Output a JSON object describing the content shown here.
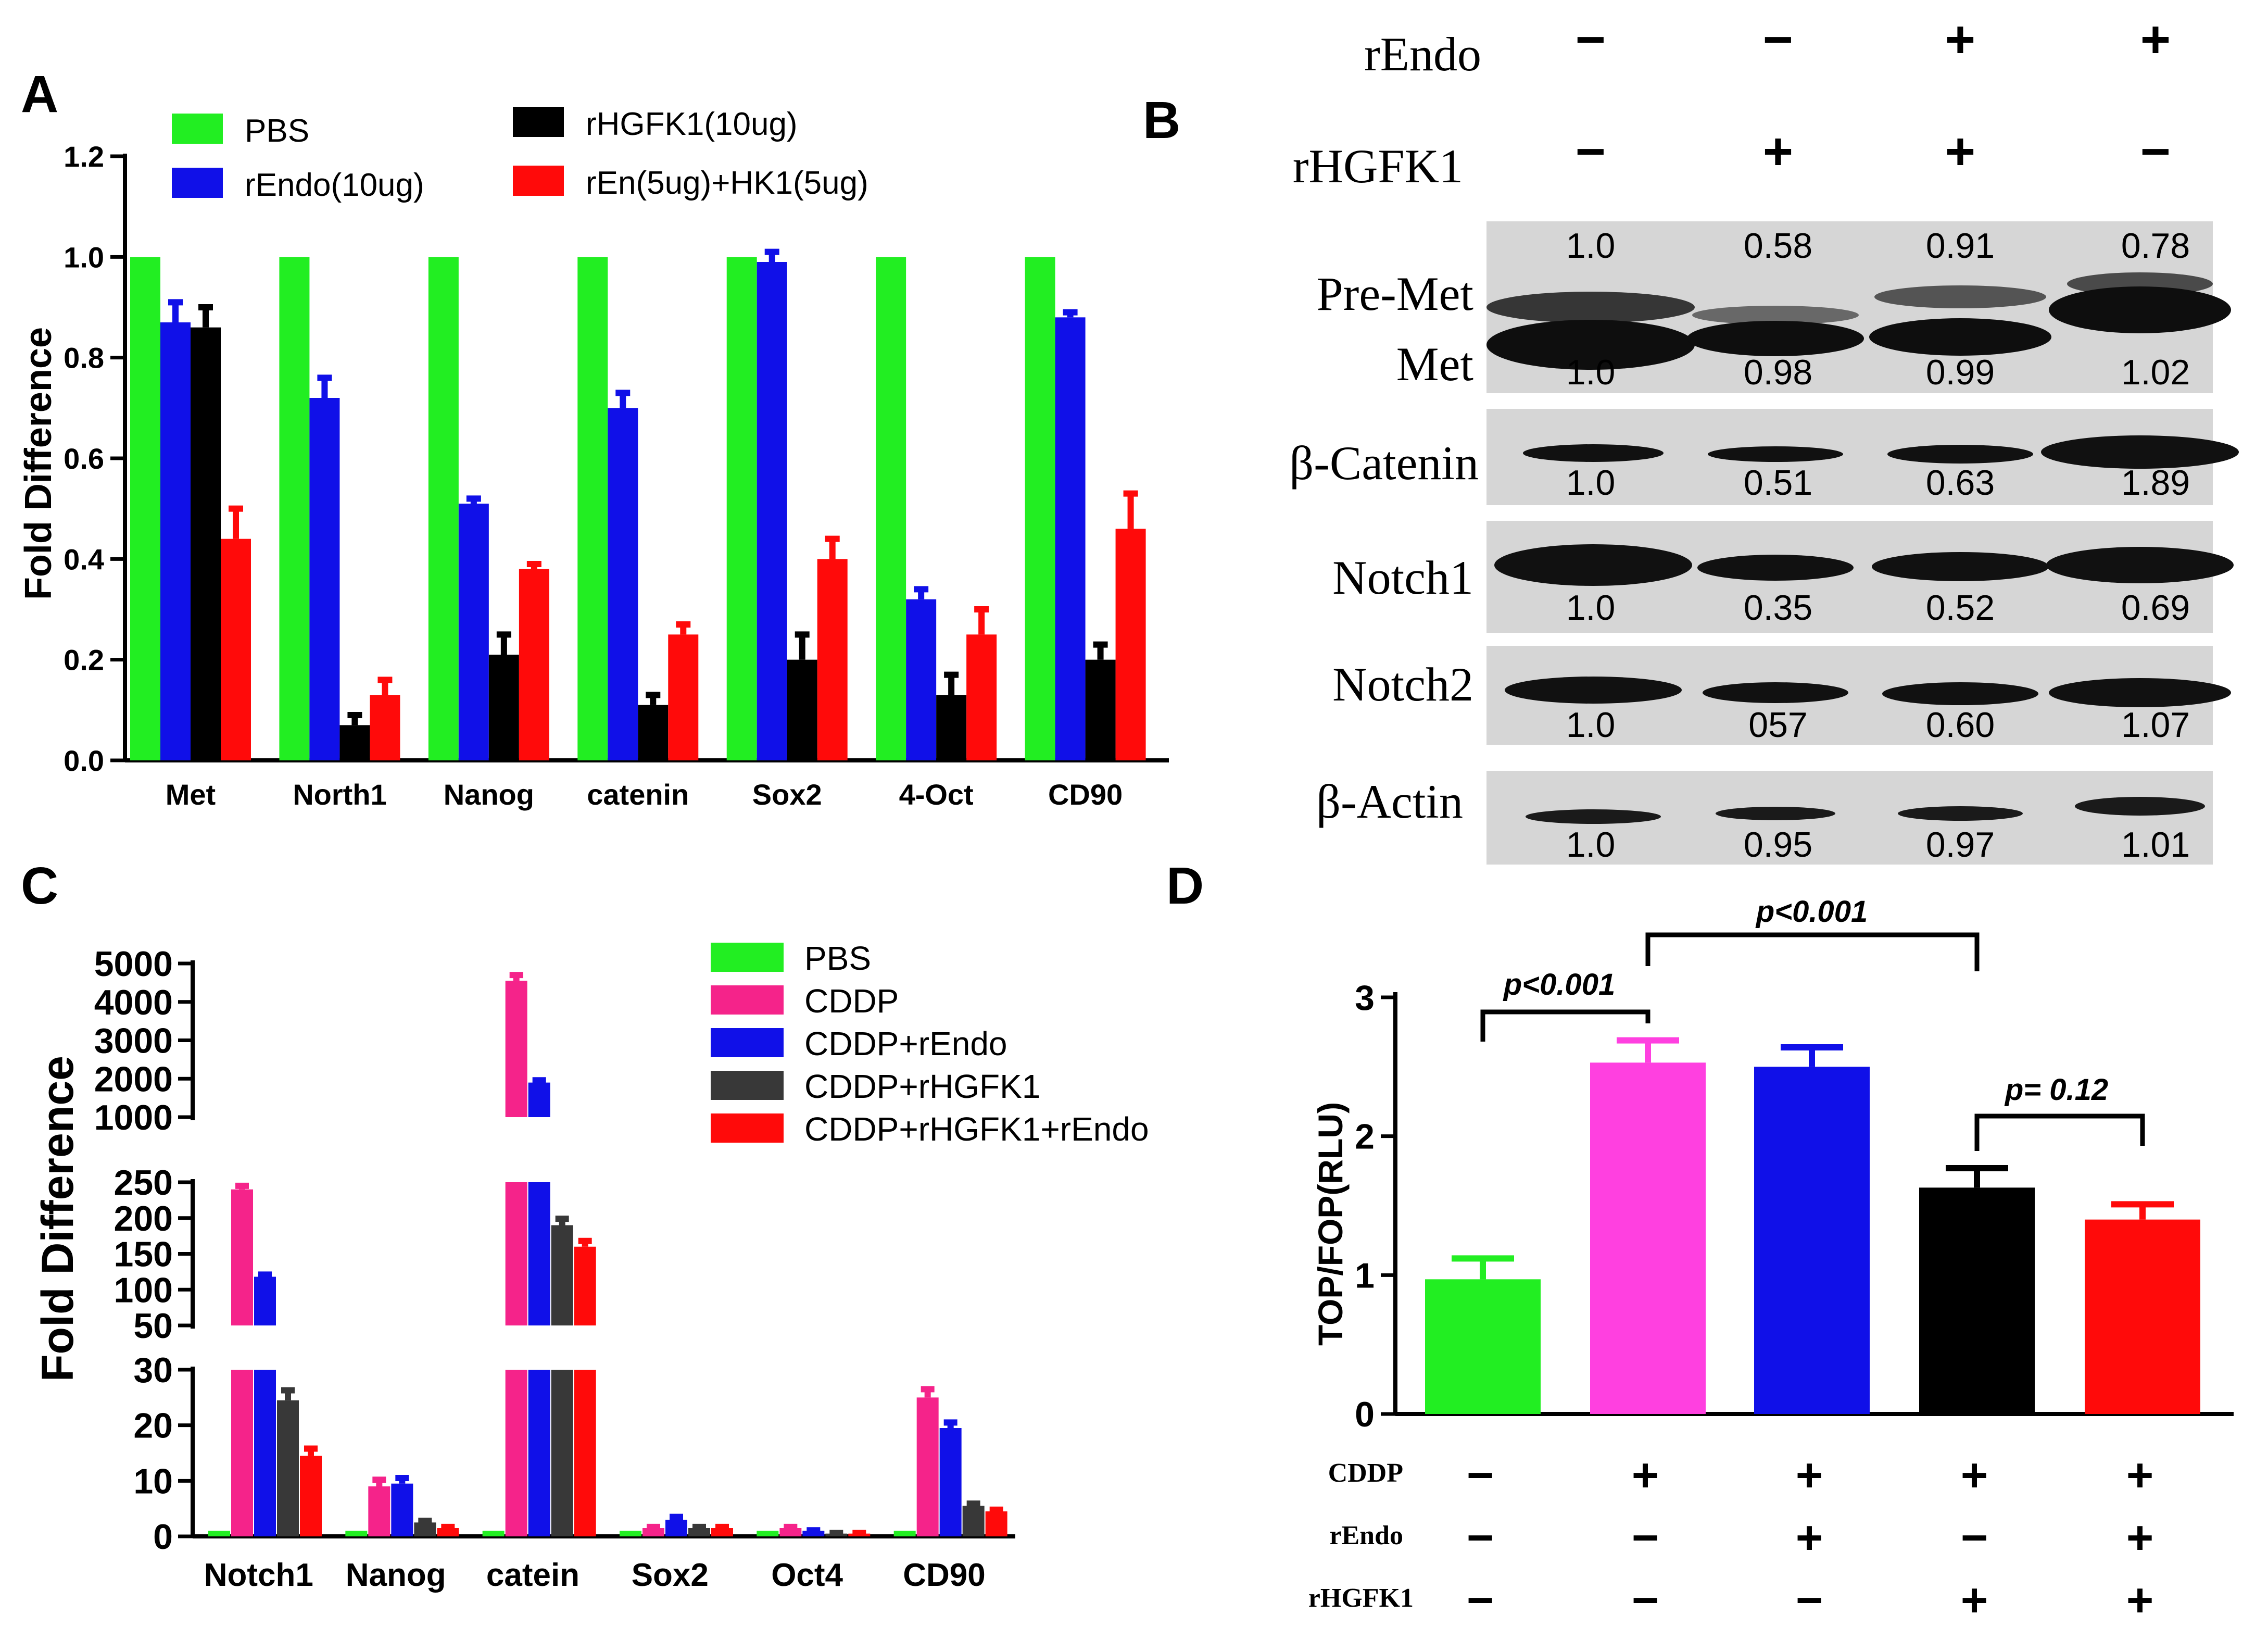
{
  "colors": {
    "green": "#22ee22",
    "blue": "#1010e8",
    "black": "#000000",
    "red": "#ff0a0a",
    "pink": "#f5238a",
    "magenta": "#ff40e0",
    "darkgray": "#383838"
  },
  "chart_data": [
    {
      "panel": "A",
      "type": "bar",
      "ylabel": "Fold Difference",
      "ylim": [
        0,
        1.2
      ],
      "yticks": [
        "0.0",
        "0.2",
        "0.4",
        "0.6",
        "0.8",
        "1.0",
        "1.2"
      ],
      "categories": [
        "Met",
        "North1",
        "Nanog",
        "catenin",
        "Sox2",
        "4-Oct",
        "CD90"
      ],
      "series": [
        {
          "name": "PBS",
          "color": "#22ee22",
          "values": [
            1.0,
            1.0,
            1.0,
            1.0,
            1.0,
            1.0,
            1.0
          ],
          "errors": [
            0,
            0,
            0,
            0,
            0,
            0,
            0
          ]
        },
        {
          "name": "rEndo(10ug)",
          "color": "#1010e8",
          "values": [
            0.87,
            0.72,
            0.51,
            0.7,
            0.99,
            0.32,
            0.88
          ],
          "errors": [
            0.04,
            0.04,
            0.01,
            0.03,
            0.02,
            0.02,
            0.01
          ]
        },
        {
          "name": "rHGFK1(10ug)",
          "color": "#000000",
          "values": [
            0.86,
            0.07,
            0.21,
            0.11,
            0.2,
            0.13,
            0.2
          ],
          "errors": [
            0.04,
            0.02,
            0.04,
            0.02,
            0.05,
            0.04,
            0.03
          ]
        },
        {
          "name": "rEn(5ug)+HK1(5ug)",
          "color": "#ff0a0a",
          "values": [
            0.44,
            0.13,
            0.38,
            0.25,
            0.4,
            0.25,
            0.46
          ],
          "errors": [
            0.06,
            0.03,
            0.01,
            0.02,
            0.04,
            0.05,
            0.07
          ]
        }
      ]
    },
    {
      "panel": "C",
      "type": "bar",
      "ylabel": "Fold Difference",
      "axis_segments": [
        {
          "range": [
            0,
            30
          ],
          "ticks": [
            "0",
            "10",
            "20",
            "30"
          ]
        },
        {
          "range": [
            50,
            250
          ],
          "ticks": [
            "50",
            "100",
            "150",
            "200",
            "250"
          ]
        },
        {
          "range": [
            1000,
            5000
          ],
          "ticks": [
            "1000",
            "2000",
            "3000",
            "4000",
            "5000"
          ]
        }
      ],
      "categories": [
        "Notch1",
        "Nanog",
        "catein",
        "Sox2",
        "Oct4",
        "CD90"
      ],
      "series": [
        {
          "name": "PBS",
          "color": "#22ee22",
          "values": [
            1,
            1,
            1,
            1,
            1,
            1
          ],
          "errors": [
            0,
            0,
            0,
            0,
            0,
            0
          ]
        },
        {
          "name": "CDDP",
          "color": "#f5238a",
          "values": [
            240,
            9,
            4550,
            1.5,
            1.5,
            25
          ],
          "errors": [
            5,
            1.2,
            150,
            0.2,
            0.2,
            1.5
          ]
        },
        {
          "name": "CDDP+rEndo",
          "color": "#1010e8",
          "values": [
            118,
            9.5,
            1900,
            3,
            1,
            19.5
          ],
          "errors": [
            3,
            1,
            60,
            0.5,
            0.1,
            1
          ]
        },
        {
          "name": "CDDP+rHGFK1",
          "color": "#383838",
          "values": [
            24.5,
            2.5,
            190,
            1.5,
            0.5,
            5.5
          ],
          "errors": [
            1.8,
            0.3,
            9,
            0.2,
            0.1,
            0.4
          ]
        },
        {
          "name": "CDDP+rHGFK1+rEndo",
          "color": "#ff0a0a",
          "values": [
            14.5,
            1.5,
            160,
            1.5,
            0.5,
            4.5
          ],
          "errors": [
            1.3,
            0.2,
            8,
            0.2,
            0.1,
            0.3
          ]
        }
      ]
    },
    {
      "panel": "D",
      "type": "bar",
      "ylabel": "TOP/FOP(RLU)",
      "ylim": [
        0,
        3
      ],
      "yticks": [
        "0",
        "1",
        "2",
        "3"
      ],
      "values": [
        0.97,
        2.53,
        2.5,
        1.63,
        1.4
      ],
      "errors": [
        0.15,
        0.16,
        0.14,
        0.14,
        0.11
      ],
      "colors": [
        "#22ee22",
        "#ff40e0",
        "#1010e8",
        "#000000",
        "#ff0a0a"
      ],
      "annotations": [
        {
          "label": "p<0.001",
          "from_bar": 0,
          "to_bar": 1
        },
        {
          "label": "p<0.001",
          "from_bar": 1,
          "to_bar": 3
        },
        {
          "label": "p= 0.12",
          "from_bar": 3,
          "to_bar": 4
        }
      ],
      "conditions": {
        "rows": [
          "CDDP",
          "rEndo",
          "rHGFK1"
        ],
        "signs": [
          [
            "−",
            "+",
            "+",
            "+",
            "+"
          ],
          [
            "−",
            "−",
            "+",
            "−",
            "+"
          ],
          [
            "−",
            "−",
            "−",
            "+",
            "+"
          ]
        ]
      }
    }
  ],
  "panel_labels": {
    "a": "A",
    "b": "B",
    "c": "C",
    "d": "D"
  },
  "panelB": {
    "treatment_rows": [
      {
        "name": "rEndo",
        "signs": [
          "−",
          "−",
          "+",
          "+"
        ]
      },
      {
        "name": "rHGFK1",
        "signs": [
          "−",
          "+",
          "+",
          "−"
        ]
      }
    ],
    "blots": [
      {
        "labels": [
          "Pre-Met",
          "Met"
        ],
        "values": [
          "1.0",
          "0.58",
          "0.91",
          "0.78"
        ],
        "values2": [
          "1.0",
          "0.98",
          "0.99",
          "1.02"
        ]
      },
      {
        "labels": [
          "β-Catenin"
        ],
        "values": [
          "1.0",
          "0.51",
          "0.63",
          "1.89"
        ]
      },
      {
        "labels": [
          "Notch1"
        ],
        "values": [
          "1.0",
          "0.35",
          "0.52",
          "0.69"
        ]
      },
      {
        "labels": [
          "Notch2"
        ],
        "values": [
          "1.0",
          "057",
          "0.60",
          "1.07"
        ]
      },
      {
        "labels": [
          "β-Actin"
        ],
        "values": [
          "1.0",
          "0.95",
          "0.97",
          "1.01"
        ]
      }
    ]
  }
}
